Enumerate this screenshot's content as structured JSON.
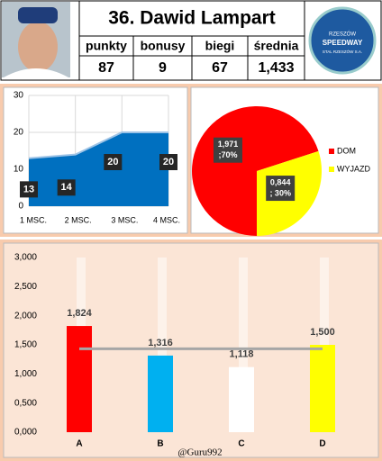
{
  "header": {
    "title": "36. Dawid Lampart",
    "stats": [
      {
        "label": "punkty",
        "value": "87"
      },
      {
        "label": "bonusy",
        "value": "9"
      },
      {
        "label": "biegi",
        "value": "67"
      },
      {
        "label": "średnia",
        "value": "1,433"
      }
    ],
    "logo": [
      "RZESZÓW",
      "SPEEDWAY",
      "STAL RZESZÓW S.A."
    ]
  },
  "chart_data": [
    {
      "type": "area",
      "categories": [
        "1 MSC.",
        "2 MSC.",
        "3 MSC.",
        "4 MSC."
      ],
      "values": [
        13,
        14,
        20,
        20
      ],
      "color": "#0070c0",
      "ylim": [
        0,
        30
      ],
      "yticks": [
        0,
        10,
        20,
        30
      ],
      "grid": true
    },
    {
      "type": "pie",
      "categories": [
        "DOM",
        "WYJAZD"
      ],
      "values": [
        1.971,
        0.844
      ],
      "percent": [
        70,
        30
      ],
      "value_labels": [
        [
          "1,971",
          ";70%"
        ],
        [
          "0,844",
          "; 30%"
        ]
      ],
      "colors": [
        "#ff0000",
        "#ffff00"
      ],
      "legend": "right"
    },
    {
      "type": "bar",
      "categories": [
        "A",
        "B",
        "C",
        "D"
      ],
      "values": [
        1.824,
        1.316,
        1.118,
        1.5
      ],
      "value_labels": [
        "1,824",
        "1,316",
        "1,118",
        "1,500"
      ],
      "colors": [
        "#ff0000",
        "#00b0f0",
        "#ffffff",
        "#ffff00"
      ],
      "average": 1.433,
      "ylim": [
        0,
        3
      ],
      "yticks": [
        {
          "value": 0,
          "label": "0,000"
        },
        {
          "value": 0.5,
          "label": "0,500"
        },
        {
          "value": 1,
          "label": "1,000"
        },
        {
          "value": 1.5,
          "label": "1,500"
        },
        {
          "value": 2,
          "label": "2,000"
        },
        {
          "value": 2.5,
          "label": "2,500"
        },
        {
          "value": 3,
          "label": "3,000"
        }
      ],
      "watermark": "@Guru992"
    }
  ]
}
